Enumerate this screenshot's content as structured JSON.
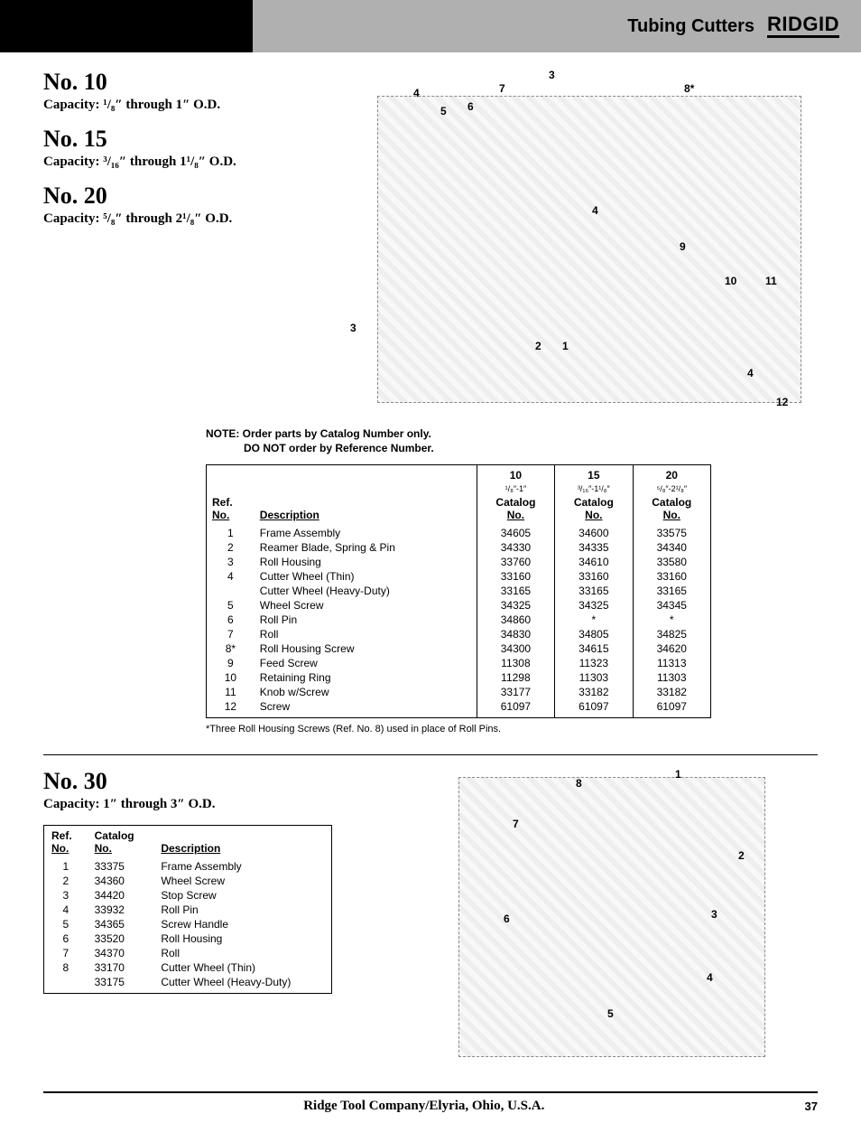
{
  "header": {
    "section_title": "Tubing Cutters",
    "brand": "RIDGID"
  },
  "models": [
    {
      "name": "No. 10",
      "capacity": "Capacity: ¹/₈″ through 1″ O.D."
    },
    {
      "name": "No. 15",
      "capacity": "Capacity: ³/₁₆″ through 1¹/₈″ O.D."
    },
    {
      "name": "No. 20",
      "capacity": "Capacity: ⁵/₈″ through 2¹/₈″ O.D."
    }
  ],
  "note": {
    "line1": "NOTE: Order parts by Catalog Number only.",
    "line2": "DO NOT order by Reference Number."
  },
  "table1": {
    "col_models": [
      {
        "num": "10",
        "range": "¹/₈″-1″"
      },
      {
        "num": "15",
        "range": "³/₁₆″-1¹/₈″"
      },
      {
        "num": "20",
        "range": "⁵/₈″-2¹/₈″"
      }
    ],
    "headers": {
      "ref": "Ref.",
      "no": "No.",
      "desc": "Description",
      "cat": "Catalog",
      "catno": "No."
    },
    "rows": [
      {
        "ref": "1",
        "desc": "Frame Assembly",
        "c10": "34605",
        "c15": "34600",
        "c20": "33575"
      },
      {
        "ref": "2",
        "desc": "Reamer Blade, Spring & Pin",
        "c10": "34330",
        "c15": "34335",
        "c20": "34340"
      },
      {
        "ref": "3",
        "desc": "Roll Housing",
        "c10": "33760",
        "c15": "34610",
        "c20": "33580"
      },
      {
        "ref": "4",
        "desc": "Cutter Wheel (Thin)",
        "c10": "33160",
        "c15": "33160",
        "c20": "33160"
      },
      {
        "ref": "",
        "desc": "Cutter Wheel (Heavy-Duty)",
        "c10": "33165",
        "c15": "33165",
        "c20": "33165"
      },
      {
        "ref": "5",
        "desc": "Wheel Screw",
        "c10": "34325",
        "c15": "34325",
        "c20": "34345"
      },
      {
        "ref": "6",
        "desc": "Roll Pin",
        "c10": "34860",
        "c15": "*",
        "c20": "*"
      },
      {
        "ref": "7",
        "desc": "Roll",
        "c10": "34830",
        "c15": "34805",
        "c20": "34825"
      },
      {
        "ref": "8*",
        "desc": "Roll Housing Screw",
        "c10": "34300",
        "c15": "34615",
        "c20": "34620"
      },
      {
        "ref": "9",
        "desc": "Feed Screw",
        "c10": "11308",
        "c15": "11323",
        "c20": "11313"
      },
      {
        "ref": "10",
        "desc": "Retaining Ring",
        "c10": "11298",
        "c15": "11303",
        "c20": "11303"
      },
      {
        "ref": "11",
        "desc": "Knob w/Screw",
        "c10": "33177",
        "c15": "33182",
        "c20": "33182"
      },
      {
        "ref": "12",
        "desc": "Screw",
        "c10": "61097",
        "c15": "61097",
        "c20": "61097"
      }
    ]
  },
  "footnote1": "*Three Roll Housing Screws (Ref. No. 8) used in place of Roll Pins.",
  "model30": {
    "name": "No. 30",
    "capacity": "Capacity: 1″ through 3″ O.D."
  },
  "table30": {
    "headers": {
      "ref": "Ref.",
      "no": "No.",
      "cat": "Catalog",
      "catno": "No.",
      "desc": "Description"
    },
    "rows": [
      {
        "ref": "1",
        "cat": "33375",
        "desc": "Frame Assembly"
      },
      {
        "ref": "2",
        "cat": "34360",
        "desc": "Wheel Screw"
      },
      {
        "ref": "3",
        "cat": "34420",
        "desc": "Stop Screw"
      },
      {
        "ref": "4",
        "cat": "33932",
        "desc": "Roll Pin"
      },
      {
        "ref": "5",
        "cat": "34365",
        "desc": "Screw Handle"
      },
      {
        "ref": "6",
        "cat": "33520",
        "desc": "Roll Housing"
      },
      {
        "ref": "7",
        "cat": "34370",
        "desc": "Roll"
      },
      {
        "ref": "8",
        "cat": "33170",
        "desc": "Cutter Wheel (Thin)"
      },
      {
        "ref": "",
        "cat": "33175",
        "desc": "Cutter Wheel (Heavy-Duty)"
      }
    ]
  },
  "diagram1_callouts": {
    "c1": "1",
    "c2": "2",
    "c3a": "3",
    "c3b": "3",
    "c4a": "4",
    "c4b": "4",
    "c4c": "4",
    "c5": "5",
    "c6": "6",
    "c7": "7",
    "c8": "8*",
    "c9": "9",
    "c10": "10",
    "c11": "11",
    "c12": "12"
  },
  "diagram2_callouts": {
    "c1": "1",
    "c2": "2",
    "c3": "3",
    "c4": "4",
    "c5": "5",
    "c6": "6",
    "c7": "7",
    "c8": "8"
  },
  "footer": {
    "company": "Ridge Tool Company/Elyria, Ohio, U.S.A.",
    "page": "37"
  }
}
